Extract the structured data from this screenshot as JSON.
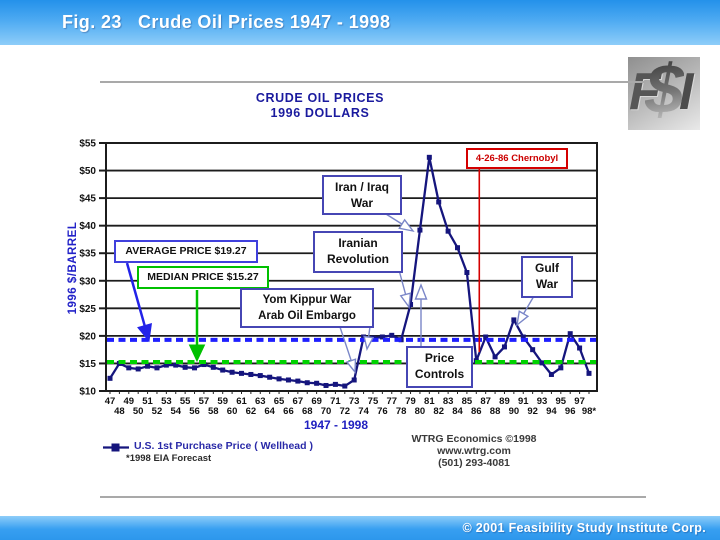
{
  "header": {
    "title": "Fig. 23   Crude Oil Prices 1947 - 1998"
  },
  "footer": {
    "copyright": "© 2001 Feasibility Study Institute Corp."
  },
  "logo": {
    "letters": [
      "F",
      "$",
      "I"
    ]
  },
  "chart_data": {
    "type": "line",
    "title": "CRUDE OIL PRICES",
    "subtitle": "1996 DOLLARS",
    "ylabel": "1996 $/BARREL",
    "xlabel": "1947 - 1998",
    "ylim": [
      10,
      55
    ],
    "ytick_step": 5,
    "ytick_prefix": "$",
    "grid": true,
    "categories": [
      "47",
      "48",
      "49",
      "50",
      "51",
      "52",
      "53",
      "54",
      "55",
      "56",
      "57",
      "58",
      "59",
      "60",
      "61",
      "62",
      "63",
      "64",
      "65",
      "66",
      "67",
      "68",
      "69",
      "70",
      "71",
      "72",
      "73",
      "74",
      "75",
      "76",
      "77",
      "78",
      "79",
      "80",
      "81",
      "82",
      "83",
      "84",
      "85",
      "86",
      "87",
      "88",
      "89",
      "90",
      "91",
      "92",
      "93",
      "94",
      "95",
      "96",
      "97",
      "98*"
    ],
    "series": [
      {
        "name": "U.S. 1st Purchase Price ( Wellhead )",
        "color": "#15157d",
        "values": [
          12.3,
          15.0,
          14.2,
          14.0,
          14.5,
          14.2,
          14.7,
          14.7,
          14.3,
          14.2,
          14.8,
          14.3,
          13.8,
          13.4,
          13.2,
          13.0,
          12.8,
          12.5,
          12.2,
          12.0,
          11.8,
          11.5,
          11.4,
          11.0,
          11.2,
          10.9,
          12.0,
          19.8,
          19.6,
          19.8,
          20.1,
          19.3,
          25.7,
          39.2,
          52.4,
          44.3,
          39.0,
          36.0,
          31.5,
          15.5,
          19.8,
          16.2,
          18.0,
          22.9,
          19.8,
          17.5,
          15.1,
          13.0,
          14.2,
          20.4,
          17.8,
          13.2
        ]
      }
    ],
    "reference_lines": [
      {
        "name": "average",
        "label": "AVERAGE PRICE $19.27",
        "value": 19.27,
        "color": "#1f1fff",
        "style": "dashed"
      },
      {
        "name": "median",
        "label": "MEDIAN PRICE $15.27",
        "value": 15.27,
        "color": "#00d300",
        "style": "dashed"
      }
    ],
    "event_line": {
      "label": "4-26-86 Chernobyl",
      "year": 1986.32,
      "color": "#d40000"
    },
    "annotations": {
      "iran_iraq": {
        "line1": "Iran / Iraq",
        "line2": "War"
      },
      "iranian_revolution": {
        "line1": "Iranian",
        "line2": "Revolution"
      },
      "yom_kippur": {
        "line1": "Yom Kippur War",
        "line2": "Arab Oil Embargo"
      },
      "price_controls": {
        "line1": "Price",
        "line2": "Controls"
      },
      "gulf_war": {
        "line1": "Gulf",
        "line2": "War"
      }
    },
    "legend": {
      "series_label": "U.S. 1st Purchase Price ( Wellhead )",
      "footnote": "*1998 EIA Forecast"
    },
    "credit": [
      "WTRG Economics  ©1998",
      "www.wtrg.com",
      "(501) 293-4081"
    ]
  }
}
